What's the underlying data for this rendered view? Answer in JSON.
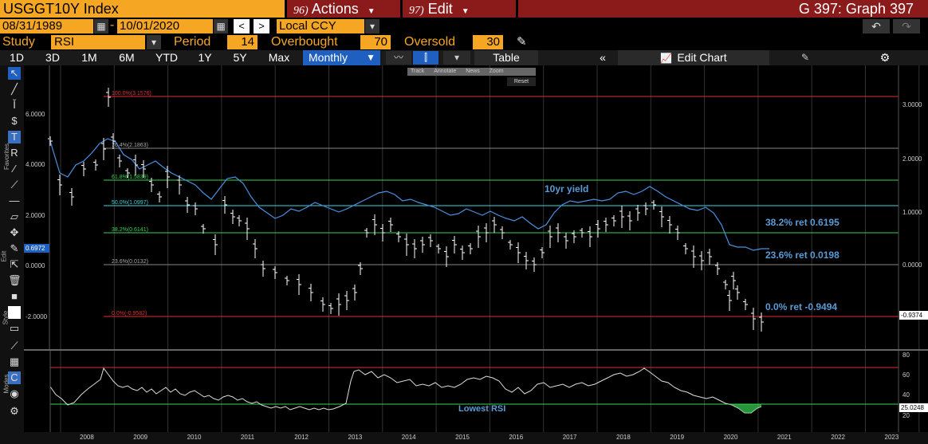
{
  "header": {
    "ticker": "USGGT10Y Index",
    "actions": {
      "num": "96)",
      "label": "Actions"
    },
    "edit": {
      "num": "97)",
      "label": "Edit"
    },
    "graph_title": "G 397: Graph 397"
  },
  "dates": {
    "start": "08/31/1989",
    "end": "10/01/2020",
    "currency": "Local CCY"
  },
  "study": {
    "label": "Study",
    "value": "RSI",
    "period_label": "Period",
    "period": "14",
    "overbought_label": "Overbought",
    "overbought": "70",
    "oversold_label": "Oversold",
    "oversold": "30"
  },
  "timeframes": [
    "1D",
    "3D",
    "1M",
    "6M",
    "YTD",
    "1Y",
    "5Y",
    "Max"
  ],
  "frequency": "Monthly",
  "toolbar": {
    "table": "Table",
    "edit_chart": "Edit Chart"
  },
  "mini_toolbar": [
    "Track",
    "Annotate",
    "News",
    "Zoom"
  ],
  "reset_label": "Reset",
  "side_labels": [
    "Favorites",
    "Edit",
    "Style",
    "Modes"
  ],
  "annotations": {
    "yield_label": "10yr yield",
    "ret382": "38.2% ret 0.6195",
    "ret236": "23.6% ret 0.0198",
    "ret00": "0.0% ret -0.9494",
    "lowest_rsi": "Lowest RSI"
  },
  "fib_labels": {
    "f100": "100.0%(3.1576)",
    "f764": "76.4%(2.1863)",
    "f618": "61.8%(1.5839)",
    "f50": "50.0%(1.0997)",
    "f382": "38.2%(0.6141)",
    "f236": "23.6%(0.0132)",
    "f0": "0.0%(-0.9582)"
  },
  "left_axis": [
    "6.0000",
    "4.0000",
    "2.0000",
    "0.0000",
    "-2.0000"
  ],
  "right_axis": [
    "3.0000",
    "2.0000",
    "1.0000",
    "0.0000"
  ],
  "last_price_left": "0.6972",
  "last_price_right": "-0.9374",
  "rsi_axis": [
    "80",
    "60",
    "40",
    "20"
  ],
  "rsi_last": "25.0248",
  "x_labels": [
    "2008",
    "2009",
    "2010",
    "2011",
    "2012",
    "2013",
    "2014",
    "2015",
    "2016",
    "2017",
    "2018",
    "2019",
    "2020",
    "2021",
    "2022",
    "2023"
  ],
  "colors": {
    "orange": "#f5a623",
    "darkred": "#8b1a1a",
    "yield_line": "#4a90e2",
    "green": "#39d353",
    "red": "#e03030",
    "cyan": "#3fd3e0",
    "annotation": "#5b9bd5"
  }
}
